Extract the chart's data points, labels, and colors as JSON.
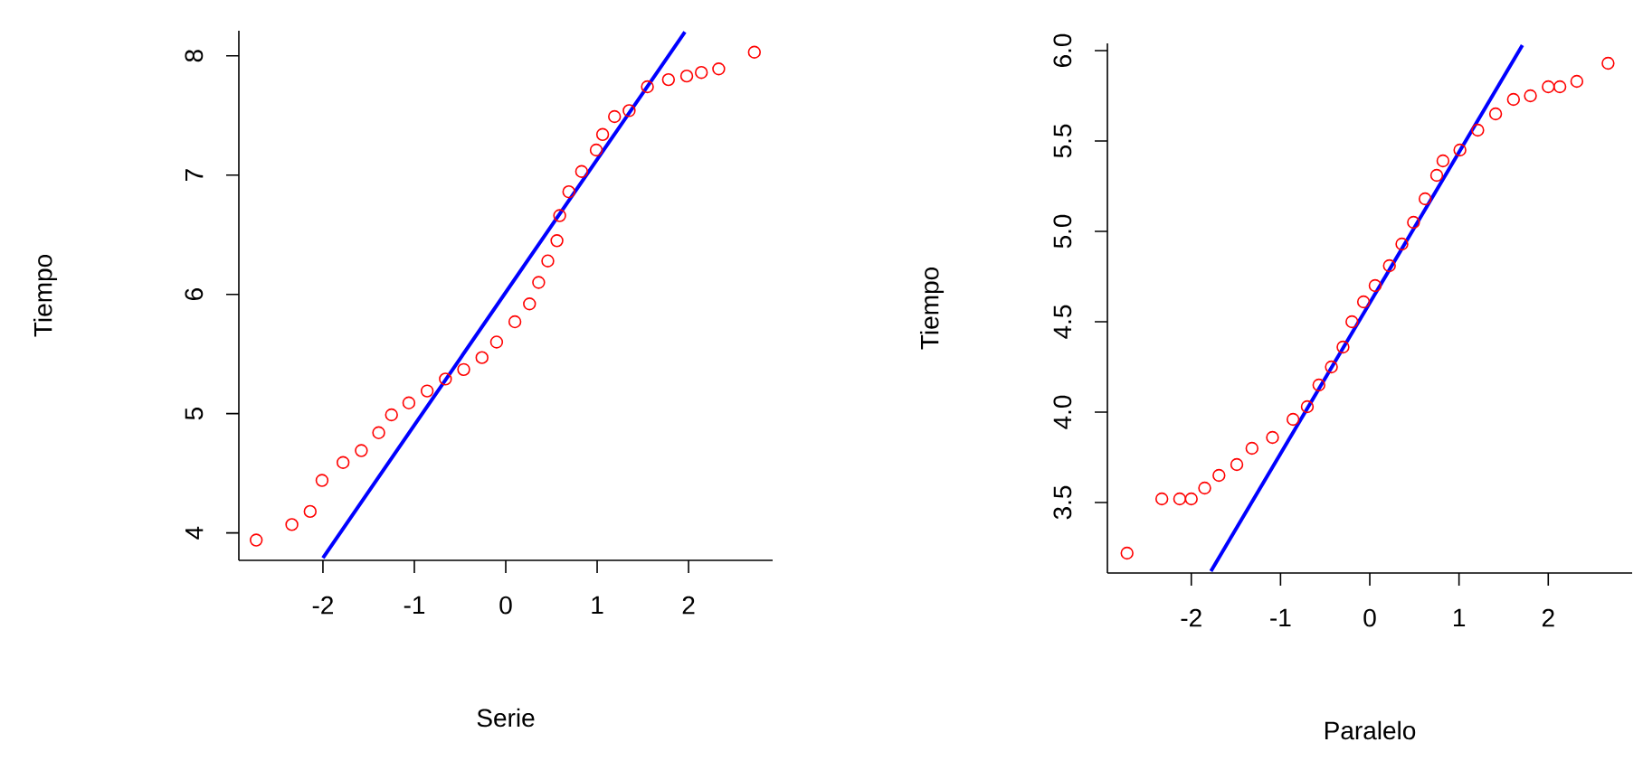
{
  "chart_data": [
    {
      "type": "scatter",
      "xlabel": "Serie",
      "ylabel": "Tiempo",
      "xlim": [
        -2.92,
        2.92
      ],
      "ylim": [
        3.77,
        8.21
      ],
      "xticks": [
        -2,
        -1,
        0,
        1,
        2
      ],
      "yticks": [
        4,
        5,
        6,
        7,
        8
      ],
      "marker": "circle",
      "series": [
        {
          "color": "#ff0000",
          "x": [
            -2.73,
            -2.34,
            -2.14,
            -2.01,
            -1.78,
            -1.58,
            -1.39,
            -1.25,
            -1.06,
            -0.86,
            -0.66,
            -0.46,
            -0.26,
            -0.1,
            0.1,
            0.26,
            0.36,
            0.46,
            0.56,
            0.59,
            0.69,
            0.83,
            0.99,
            1.06,
            1.19,
            1.35,
            1.55,
            1.78,
            1.98,
            2.14,
            2.33,
            2.72
          ],
          "values": [
            3.94,
            4.07,
            4.18,
            4.44,
            4.59,
            4.69,
            4.84,
            4.99,
            5.09,
            5.19,
            5.29,
            5.37,
            5.47,
            5.6,
            5.77,
            5.92,
            6.1,
            6.28,
            6.45,
            6.66,
            6.86,
            7.03,
            7.21,
            7.34,
            7.49,
            7.54,
            7.74,
            7.8,
            7.83,
            7.86,
            7.89,
            8.03
          ]
        },
        {
          "type": "line",
          "marker": "none",
          "color": "#0000ff",
          "x": [
            -2.0,
            1.96
          ],
          "values": [
            3.79,
            8.2
          ]
        }
      ]
    },
    {
      "type": "scatter",
      "xlabel": "Paralelo",
      "ylabel": "Tiempo",
      "xlim": [
        -2.94,
        2.94
      ],
      "ylim": [
        3.11,
        6.04
      ],
      "xticks": [
        -2,
        -1,
        0,
        1,
        2
      ],
      "yticks": [
        3.5,
        {
          "value": 4,
          "label": "4.0"
        },
        4.5,
        {
          "value": 5,
          "label": "5.0"
        },
        5.5,
        {
          "value": 6,
          "label": "6.0"
        }
      ],
      "marker": "circle",
      "series": [
        {
          "color": "#ff0000",
          "x": [
            -2.72,
            -2.33,
            -2.13,
            -2.0,
            -1.85,
            -1.69,
            -1.49,
            -1.32,
            -1.09,
            -0.86,
            -0.7,
            -0.57,
            -0.43,
            -0.3,
            -0.2,
            -0.07,
            0.06,
            0.22,
            0.36,
            0.49,
            0.62,
            0.75,
            0.82,
            1.01,
            1.21,
            1.41,
            1.61,
            1.8,
            2.0,
            2.13,
            2.32,
            2.67
          ],
          "values": [
            3.22,
            3.52,
            3.52,
            3.52,
            3.58,
            3.65,
            3.71,
            3.8,
            3.86,
            3.96,
            4.03,
            4.15,
            4.25,
            4.36,
            4.5,
            4.61,
            4.7,
            4.81,
            4.93,
            5.05,
            5.18,
            5.31,
            5.39,
            5.45,
            5.56,
            5.65,
            5.73,
            5.75,
            5.8,
            5.8,
            5.83,
            5.93
          ]
        },
        {
          "type": "line",
          "marker": "none",
          "color": "#0000ff",
          "x": [
            -1.78,
            1.71
          ],
          "values": [
            3.12,
            6.03
          ]
        }
      ]
    }
  ]
}
